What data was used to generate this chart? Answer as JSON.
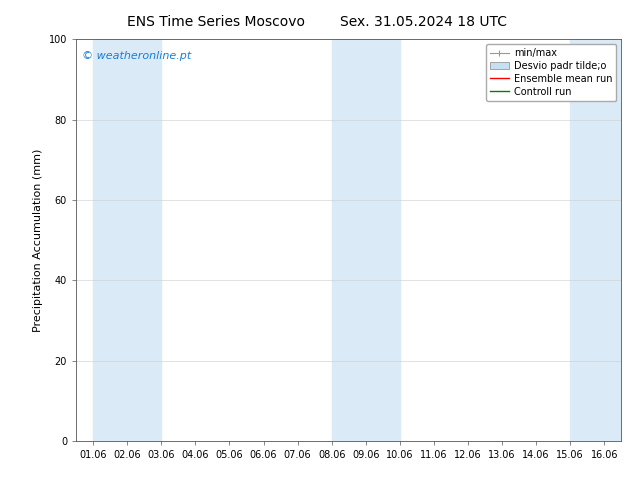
{
  "title_left": "ENS Time Series Moscovo",
  "title_right": "Sex. 31.05.2024 18 UTC",
  "ylabel": "Precipitation Accumulation (mm)",
  "watermark": "© weatheronline.pt",
  "watermark_color": "#1a7fd4",
  "ylim": [
    0,
    100
  ],
  "yticks": [
    0,
    20,
    40,
    60,
    80,
    100
  ],
  "x_labels": [
    "01.06",
    "02.06",
    "03.06",
    "04.06",
    "05.06",
    "06.06",
    "07.06",
    "08.06",
    "09.06",
    "10.06",
    "11.06",
    "12.06",
    "13.06",
    "14.06",
    "15.06",
    "16.06"
  ],
  "x_positions": [
    0,
    1,
    2,
    3,
    4,
    5,
    6,
    7,
    8,
    9,
    10,
    11,
    12,
    13,
    14,
    15
  ],
  "xlim": [
    -0.5,
    15.5
  ],
  "background_color": "#ffffff",
  "plot_bg_color": "#ffffff",
  "shaded_bands": [
    {
      "x_start": 0,
      "x_end": 2,
      "color": "#daeaf7"
    },
    {
      "x_start": 7,
      "x_end": 9,
      "color": "#daeaf7"
    },
    {
      "x_start": 14,
      "x_end": 15.5,
      "color": "#daeaf7"
    }
  ],
  "legend_entries": [
    {
      "label": "min/max",
      "color": "#999999",
      "style": "errorbar"
    },
    {
      "label": "Desvio padr tilde;o",
      "color": "#c8dff0",
      "style": "bar"
    },
    {
      "label": "Ensemble mean run",
      "color": "#ff0000",
      "style": "line"
    },
    {
      "label": "Controll run",
      "color": "#008000",
      "style": "line"
    }
  ],
  "title_fontsize": 10,
  "tick_fontsize": 7,
  "ylabel_fontsize": 8,
  "legend_fontsize": 7,
  "watermark_fontsize": 8
}
